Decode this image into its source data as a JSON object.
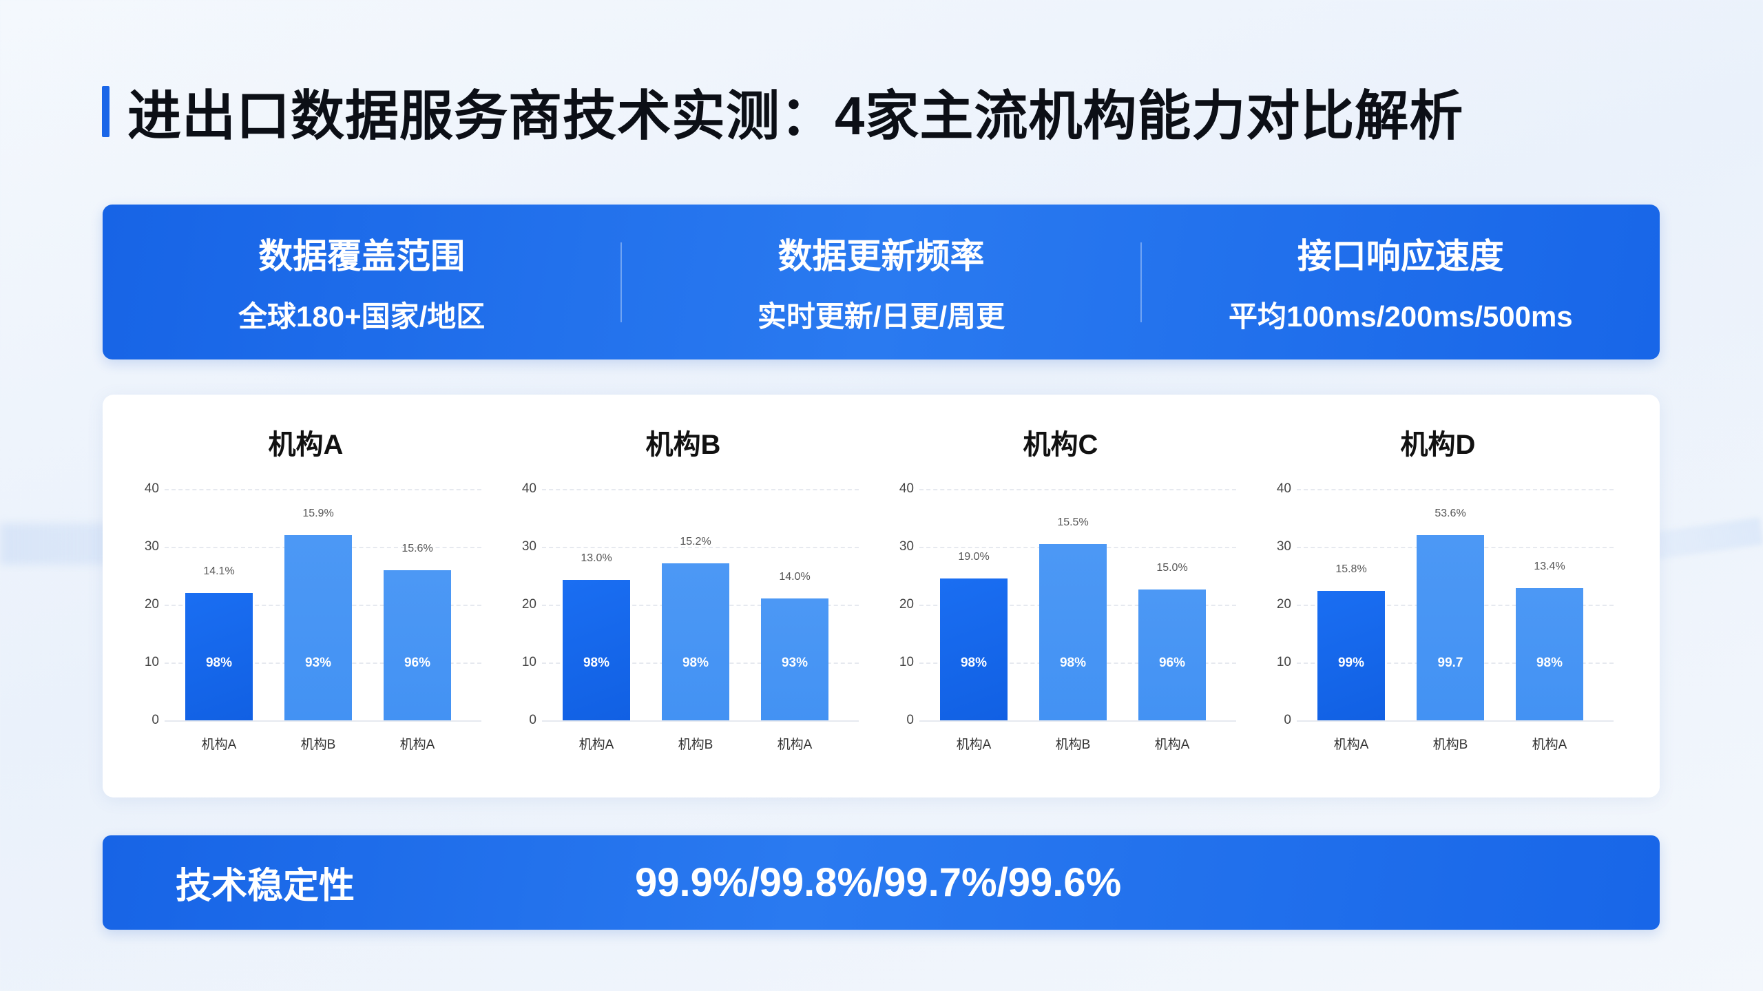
{
  "header": {
    "title": "进出口数据服务商技术实测：4家主流机构能力对比解析",
    "accent_color": "#1a66e8"
  },
  "metrics": [
    {
      "title": "数据覆盖范围",
      "value": "全球180+国家/地区"
    },
    {
      "title": "数据更新频率",
      "value": "实时更新/日更/周更"
    },
    {
      "title": "接口响应速度",
      "value": "平均100ms/200ms/500ms"
    }
  ],
  "stability": {
    "label": "技术稳定性",
    "value": "99.9%/99.8%/99.7%/99.6%"
  },
  "colors": {
    "band_blue": "#1a6be9",
    "bar_primary": "#1566ec",
    "bar_secondary": "#4895f4"
  },
  "chart_data": [
    {
      "type": "bar",
      "title": "机构A",
      "categories": [
        "机构A",
        "机构B",
        "机构A"
      ],
      "values": [
        22,
        32,
        26
      ],
      "top_labels": [
        "14.1%",
        "15.9%",
        "15.6%"
      ],
      "inner_labels": [
        "98%",
        "93%",
        "96%"
      ],
      "yticks": [
        0,
        10,
        20,
        30,
        40
      ],
      "ylim": [
        0,
        40
      ],
      "xlabel": "",
      "ylabel": "",
      "grid": true
    },
    {
      "type": "bar",
      "title": "机构B",
      "categories": [
        "机构A",
        "机构B",
        "机构A"
      ],
      "values": [
        24.3,
        27.2,
        21.1
      ],
      "top_labels": [
        "13.0%",
        "15.2%",
        "14.0%"
      ],
      "inner_labels": [
        "98%",
        "98%",
        "93%"
      ],
      "yticks": [
        0,
        10,
        20,
        30,
        40
      ],
      "ylim": [
        0,
        40
      ],
      "xlabel": "",
      "ylabel": "",
      "grid": true
    },
    {
      "type": "bar",
      "title": "机构C",
      "categories": [
        "机构A",
        "机构B",
        "机构A"
      ],
      "values": [
        24.5,
        30.5,
        22.6
      ],
      "top_labels": [
        "19.0%",
        "15.5%",
        "15.0%"
      ],
      "inner_labels": [
        "98%",
        "98%",
        "96%"
      ],
      "yticks": [
        0,
        10,
        20,
        30,
        40
      ],
      "ylim": [
        0,
        40
      ],
      "xlabel": "",
      "ylabel": "",
      "grid": true
    },
    {
      "type": "bar",
      "title": "机构D",
      "categories": [
        "机构A",
        "机构B",
        "机构A"
      ],
      "values": [
        22.4,
        32,
        22.9
      ],
      "top_labels": [
        "15.8%",
        "53.6%",
        "13.4%"
      ],
      "inner_labels": [
        "99%",
        "99.7",
        "98%"
      ],
      "yticks": [
        0,
        10,
        20,
        30,
        40
      ],
      "ylim": [
        0,
        40
      ],
      "xlabel": "",
      "ylabel": "",
      "grid": true
    }
  ]
}
